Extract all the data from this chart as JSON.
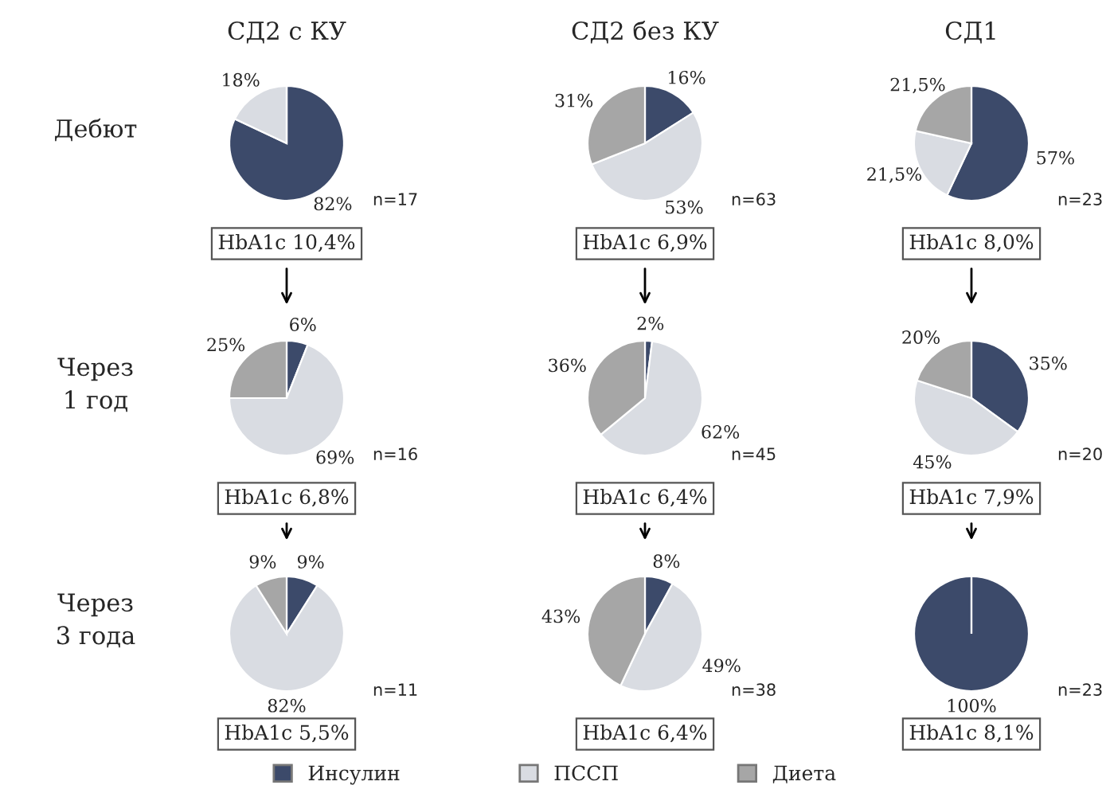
{
  "chart_data": [
    {
      "type": "pie",
      "title": "СД2 с КУ",
      "ylabel": "Дебют",
      "legend": "bottom",
      "categories": [
        "Инсулин",
        "ПССП",
        "Диета"
      ],
      "values": [
        82,
        18,
        0
      ],
      "colors": [
        "#3c4a6a",
        "#d9dce2",
        "#a6a6a6"
      ],
      "value_labels": [
        "82%",
        "18%",
        null
      ],
      "annotations": [
        "n=17",
        "HbA1c 10,4%"
      ]
    },
    {
      "type": "pie",
      "title": "СД2 без КУ",
      "values": [
        16,
        53,
        31
      ],
      "colors": [
        "#3c4a6a",
        "#d9dce2",
        "#a6a6a6"
      ],
      "value_labels": [
        "16%",
        "53%",
        "31%"
      ],
      "annotations": [
        "n=63",
        "HbA1c 6,9%"
      ]
    },
    {
      "type": "pie",
      "title": "СД1",
      "values": [
        57,
        21.5,
        21.5
      ],
      "colors": [
        "#3c4a6a",
        "#d9dce2",
        "#a6a6a6"
      ],
      "value_labels": [
        "57%",
        "21,5%",
        "21,5%"
      ],
      "annotations": [
        "n=23",
        "HbA1c 8,0%"
      ]
    },
    {
      "type": "pie",
      "ylabel": "Через\n1 год",
      "values": [
        6,
        69,
        25
      ],
      "colors": [
        "#3c4a6a",
        "#d9dce2",
        "#a6a6a6"
      ],
      "value_labels": [
        "6%",
        "69%",
        "25%"
      ],
      "annotations": [
        "n=16",
        "HbA1c 6,8%"
      ]
    },
    {
      "type": "pie",
      "values": [
        2,
        62,
        36
      ],
      "colors": [
        "#3c4a6a",
        "#d9dce2",
        "#a6a6a6"
      ],
      "value_labels": [
        "2%",
        "62%",
        "36%"
      ],
      "annotations": [
        "n=45",
        "HbA1c 6,4%"
      ]
    },
    {
      "type": "pie",
      "values": [
        35,
        45,
        20
      ],
      "colors": [
        "#3c4a6a",
        "#d9dce2",
        "#a6a6a6"
      ],
      "value_labels": [
        "35%",
        "45%",
        "20%"
      ],
      "annotations": [
        "n=20",
        "HbA1c 7,9%"
      ]
    },
    {
      "type": "pie",
      "ylabel": "Через\n3 года",
      "values": [
        9,
        82,
        9
      ],
      "colors": [
        "#3c4a6a",
        "#d9dce2",
        "#a6a6a6"
      ],
      "value_labels": [
        "9%",
        "82%",
        "9%"
      ],
      "annotations": [
        "n=11",
        "HbA1c 5,5%"
      ]
    },
    {
      "type": "pie",
      "values": [
        8,
        49,
        43
      ],
      "colors": [
        "#3c4a6a",
        "#d9dce2",
        "#a6a6a6"
      ],
      "value_labels": [
        "8%",
        "49%",
        "43%"
      ],
      "annotations": [
        "n=38",
        "HbA1c 6,4%"
      ]
    },
    {
      "type": "pie",
      "values": [
        100,
        0,
        0
      ],
      "colors": [
        "#3c4a6a",
        "#d9dce2",
        "#a6a6a6"
      ],
      "value_labels": [
        "100%",
        null,
        null
      ],
      "annotations": [
        "n=23",
        "HbA1c 8,1%"
      ]
    }
  ]
}
